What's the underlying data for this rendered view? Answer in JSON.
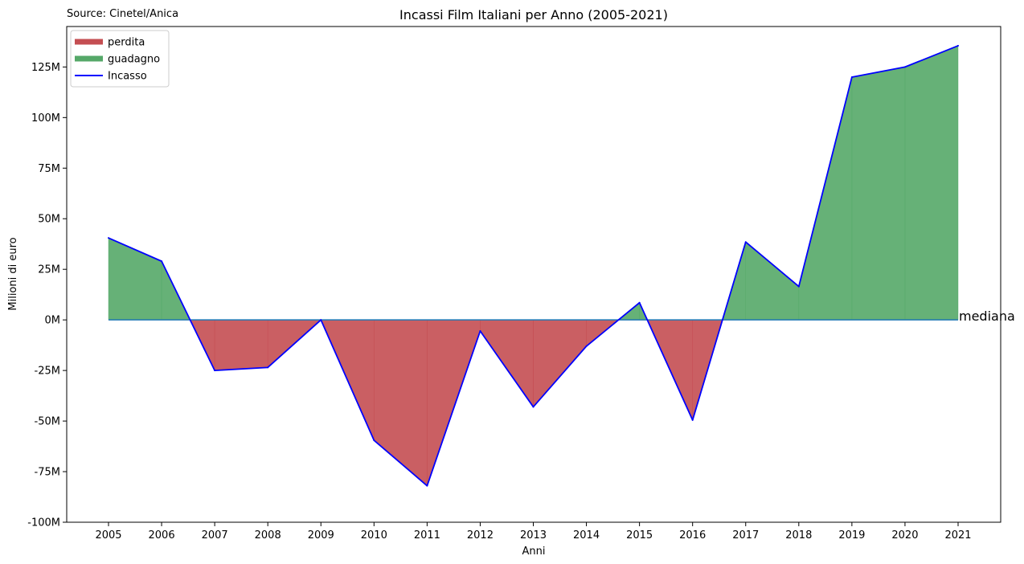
{
  "chart_data": {
    "type": "area",
    "title": "Incassi Film Italiani per Anno (2005-2021)",
    "source": "Source: Cinetel/Anica",
    "xlabel": "Anni",
    "ylabel": "Milioni di euro",
    "ylim": [
      -100,
      145
    ],
    "yticks": [
      -100,
      -75,
      -50,
      -25,
      0,
      25,
      50,
      75,
      100,
      125
    ],
    "ytick_labels": [
      "-100M",
      "-75M",
      "-50M",
      "-25M",
      "0M",
      "25M",
      "50M",
      "75M",
      "100M",
      "125M"
    ],
    "categories": [
      "2005",
      "2006",
      "2007",
      "2008",
      "2009",
      "2010",
      "2011",
      "2012",
      "2013",
      "2014",
      "2015",
      "2016",
      "2017",
      "2018",
      "2019",
      "2020",
      "2021"
    ],
    "series": [
      {
        "name": "Incasso",
        "values": [
          40.5,
          29,
          -25,
          -23.5,
          0,
          -59.5,
          -82,
          -5.5,
          -43,
          -13,
          8.5,
          -49.5,
          38.5,
          16.5,
          120,
          125,
          135.5
        ],
        "color": "#0000ff"
      }
    ],
    "baseline": 0,
    "annotation": "mediana",
    "legend": {
      "position": "top-left",
      "items": [
        {
          "label": "perdita",
          "color": "#c44e52"
        },
        {
          "label": "guadagno",
          "color": "#55a868"
        },
        {
          "label": "Incasso",
          "color": "#0000ff"
        }
      ]
    },
    "fill_colors": {
      "gain": "#55a868",
      "loss": "#c44e52"
    },
    "baseline_color": "#1f77b4"
  }
}
